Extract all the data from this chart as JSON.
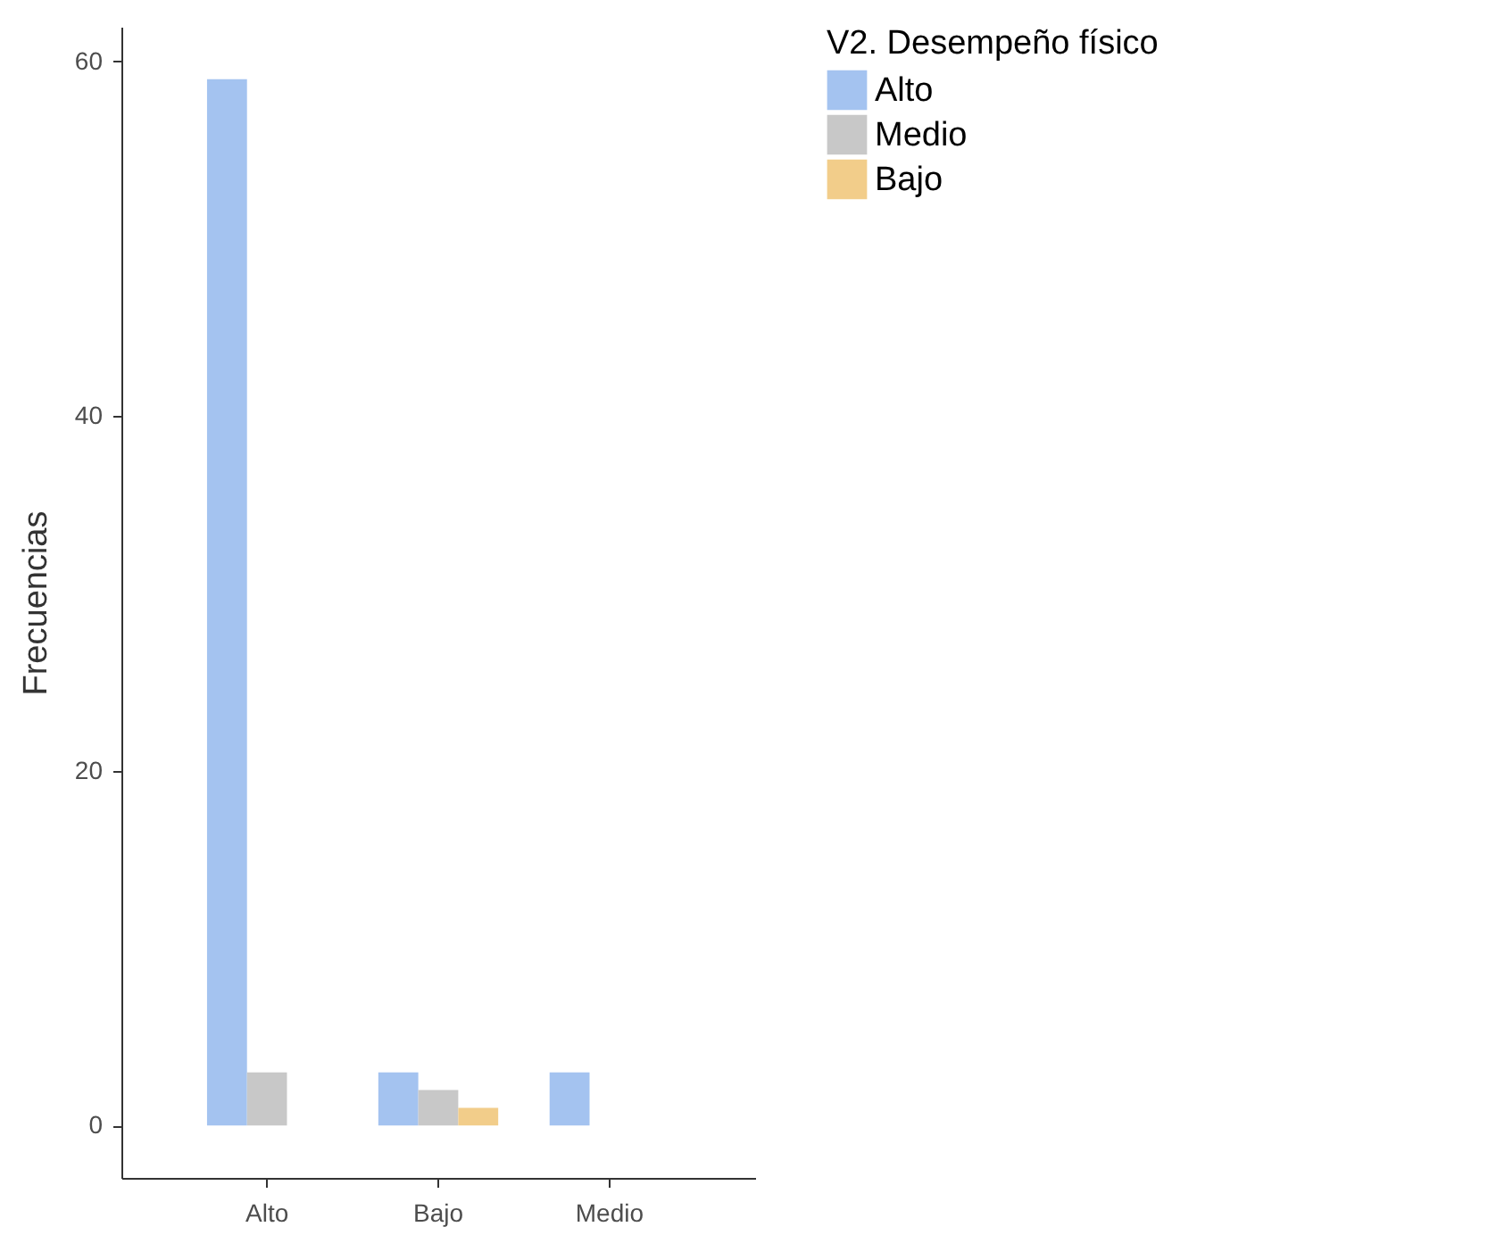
{
  "chart_data": {
    "type": "bar",
    "categories": [
      "Alto",
      "Bajo",
      "Medio"
    ],
    "ylabel": "Frecuencias",
    "legend_title": "V2.  Desempeño físico",
    "legend": "right",
    "grid": false,
    "ylim": [
      -2.95,
      61.95
    ],
    "yticks": [
      0,
      20,
      40,
      60
    ],
    "series": [
      {
        "name": "Alto",
        "color": "#a4c3f0",
        "values": [
          59,
          3,
          3
        ]
      },
      {
        "name": "Medio",
        "color": "#c8c8c8",
        "values": [
          3,
          2,
          null
        ]
      },
      {
        "name": "Bajo",
        "color": "#f2cd8a",
        "values": [
          null,
          1,
          null
        ]
      }
    ]
  }
}
